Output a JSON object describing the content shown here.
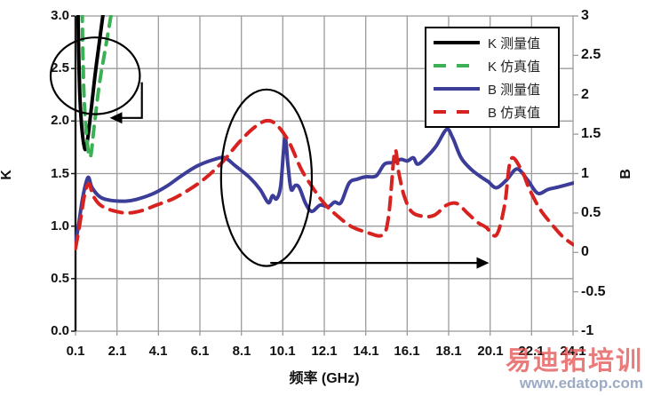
{
  "chart_data": {
    "type": "line",
    "xlabel": "频率 (GHz)",
    "ylabel_left": "K",
    "ylabel_right": "B",
    "xlim": [
      0.1,
      24.1
    ],
    "ylim_left": [
      0.0,
      3.0
    ],
    "ylim_right": [
      -1,
      3
    ],
    "grid": true,
    "grid_color": "#9b9b9b",
    "axis_color": "#1a1a1a",
    "x_tick_labels": [
      "0.1",
      "2.1",
      "4.1",
      "6.1",
      "8.1",
      "10.1",
      "12.1",
      "14.1",
      "16.1",
      "18.1",
      "20.1",
      "22.1",
      "24.1"
    ],
    "x_tick_values": [
      0.1,
      2.1,
      4.1,
      6.1,
      8.1,
      10.1,
      12.1,
      14.1,
      16.1,
      18.1,
      20.1,
      22.1,
      24.1
    ],
    "left_tick_labels": [
      "3.0",
      "2.5",
      "2.0",
      "1.5",
      "1.0",
      "0.5",
      "0.0"
    ],
    "left_tick_values": [
      3.0,
      2.5,
      2.0,
      1.5,
      1.0,
      0.5,
      0.0
    ],
    "right_tick_labels": [
      "3",
      "2.5",
      "2",
      "1.5",
      "1",
      "0.5",
      "0",
      "-0.5",
      "-1"
    ],
    "right_tick_values": [
      3,
      2.5,
      2,
      1.5,
      1,
      0.5,
      0,
      -0.5,
      -1
    ],
    "legend_position": "top-right",
    "series": [
      {
        "name": "K 测量值",
        "axis": "left",
        "color": "#000000",
        "style": "solid",
        "points": [
          [
            0.22,
            3.05
          ],
          [
            0.26,
            2.6
          ],
          [
            0.32,
            2.2
          ],
          [
            0.42,
            1.9
          ],
          [
            0.56,
            1.73
          ],
          [
            0.7,
            1.85
          ],
          [
            0.85,
            2.1
          ],
          [
            1.05,
            2.45
          ],
          [
            1.25,
            2.75
          ],
          [
            1.45,
            3.05
          ]
        ]
      },
      {
        "name": "K 仿真值",
        "axis": "left",
        "color": "#3CB054",
        "style": "dashed",
        "points": [
          [
            0.42,
            3.05
          ],
          [
            0.46,
            2.6
          ],
          [
            0.52,
            2.2
          ],
          [
            0.66,
            1.8
          ],
          [
            0.82,
            1.66
          ],
          [
            1.0,
            1.95
          ],
          [
            1.25,
            2.35
          ],
          [
            1.55,
            2.7
          ],
          [
            1.85,
            3.05
          ]
        ]
      },
      {
        "name": "B 测量值",
        "axis": "right",
        "color": "#3C3C99",
        "style": "solid",
        "points": [
          [
            0.1,
            0.12
          ],
          [
            0.25,
            0.35
          ],
          [
            0.45,
            0.7
          ],
          [
            0.7,
            0.95
          ],
          [
            0.9,
            0.82
          ],
          [
            1.3,
            0.7
          ],
          [
            1.8,
            0.66
          ],
          [
            2.5,
            0.65
          ],
          [
            3.0,
            0.67
          ],
          [
            3.8,
            0.74
          ],
          [
            4.5,
            0.84
          ],
          [
            5.2,
            0.97
          ],
          [
            6.0,
            1.1
          ],
          [
            6.8,
            1.18
          ],
          [
            7.3,
            1.2
          ],
          [
            7.8,
            1.1
          ],
          [
            8.5,
            0.95
          ],
          [
            9.0,
            0.8
          ],
          [
            9.4,
            0.63
          ],
          [
            9.6,
            0.72
          ],
          [
            9.8,
            0.68
          ],
          [
            10.0,
            0.85
          ],
          [
            10.2,
            1.45
          ],
          [
            10.35,
            1.1
          ],
          [
            10.5,
            0.8
          ],
          [
            10.7,
            0.85
          ],
          [
            10.9,
            0.82
          ],
          [
            11.2,
            0.62
          ],
          [
            11.5,
            0.52
          ],
          [
            11.9,
            0.6
          ],
          [
            12.3,
            0.58
          ],
          [
            12.6,
            0.64
          ],
          [
            12.9,
            0.63
          ],
          [
            13.3,
            0.88
          ],
          [
            13.7,
            0.93
          ],
          [
            14.1,
            0.96
          ],
          [
            14.6,
            0.97
          ],
          [
            15.0,
            1.12
          ],
          [
            15.4,
            1.14
          ],
          [
            15.8,
            1.18
          ],
          [
            16.1,
            1.16
          ],
          [
            16.4,
            1.2
          ],
          [
            16.6,
            1.12
          ],
          [
            17.0,
            1.2
          ],
          [
            17.5,
            1.35
          ],
          [
            18.0,
            1.56
          ],
          [
            18.3,
            1.45
          ],
          [
            18.7,
            1.2
          ],
          [
            19.2,
            1.05
          ],
          [
            19.7,
            0.95
          ],
          [
            20.0,
            0.9
          ],
          [
            20.4,
            0.82
          ],
          [
            20.9,
            0.92
          ],
          [
            21.4,
            1.06
          ],
          [
            21.9,
            0.92
          ],
          [
            22.4,
            0.75
          ],
          [
            22.9,
            0.8
          ],
          [
            23.4,
            0.83
          ],
          [
            24.1,
            0.88
          ]
        ]
      },
      {
        "name": "B 仿真值",
        "axis": "right",
        "color": "#D8221F",
        "style": "dashed",
        "points": [
          [
            0.1,
            0.05
          ],
          [
            0.3,
            0.35
          ],
          [
            0.55,
            0.75
          ],
          [
            0.75,
            0.87
          ],
          [
            0.95,
            0.72
          ],
          [
            1.3,
            0.6
          ],
          [
            1.9,
            0.53
          ],
          [
            2.6,
            0.5
          ],
          [
            3.3,
            0.53
          ],
          [
            4.0,
            0.6
          ],
          [
            4.8,
            0.68
          ],
          [
            5.6,
            0.8
          ],
          [
            6.4,
            0.95
          ],
          [
            7.2,
            1.15
          ],
          [
            8.0,
            1.4
          ],
          [
            8.7,
            1.58
          ],
          [
            9.3,
            1.67
          ],
          [
            9.8,
            1.62
          ],
          [
            10.4,
            1.4
          ],
          [
            11.0,
            1.05
          ],
          [
            11.6,
            0.8
          ],
          [
            12.1,
            0.62
          ],
          [
            12.7,
            0.47
          ],
          [
            13.4,
            0.33
          ],
          [
            14.2,
            0.25
          ],
          [
            14.9,
            0.22
          ],
          [
            15.2,
            0.45
          ],
          [
            15.5,
            1.28
          ],
          [
            15.7,
            1.0
          ],
          [
            15.95,
            0.72
          ],
          [
            16.3,
            0.52
          ],
          [
            16.8,
            0.46
          ],
          [
            17.4,
            0.47
          ],
          [
            18.0,
            0.6
          ],
          [
            18.5,
            0.62
          ],
          [
            19.0,
            0.5
          ],
          [
            19.5,
            0.38
          ],
          [
            19.9,
            0.32
          ],
          [
            20.4,
            0.22
          ],
          [
            20.8,
            0.6
          ],
          [
            21.1,
            1.18
          ],
          [
            21.6,
            1.05
          ],
          [
            22.0,
            0.8
          ],
          [
            22.5,
            0.55
          ],
          [
            23.0,
            0.38
          ],
          [
            23.6,
            0.2
          ],
          [
            24.1,
            0.1
          ]
        ]
      }
    ],
    "annotations": {
      "color": "#000000",
      "ellipse_k": {
        "cx_ghz": 1.05,
        "cy_k": 2.43,
        "rx_ghz": 2.15,
        "ry_k": 0.365
      },
      "arrow_k_hook": {
        "points_ghz_k": [
          [
            3.3,
            2.37
          ],
          [
            3.3,
            2.03
          ],
          [
            2.35,
            2.03
          ]
        ],
        "head": "left"
      },
      "ellipse_b": {
        "cx_ghz": 9.31,
        "cy_k": 1.46,
        "rx_ghz": 2.19,
        "ry_k": 0.84
      },
      "arrow_b": {
        "points_ghz_k": [
          [
            9.5,
            0.65
          ],
          [
            19.45,
            0.65
          ]
        ],
        "head": "right"
      }
    }
  },
  "legend": {
    "items": [
      {
        "label": "K 测量值"
      },
      {
        "label": "K 仿真值"
      },
      {
        "label": "B 测量值"
      },
      {
        "label": "B 仿真值"
      }
    ]
  },
  "watermark": {
    "text_cn": "易迪拓培训",
    "url": "www.edatop.com",
    "color_cn": "rgba(226,72,72,0.72)",
    "color_url": "rgba(148,164,192,0.92)"
  }
}
